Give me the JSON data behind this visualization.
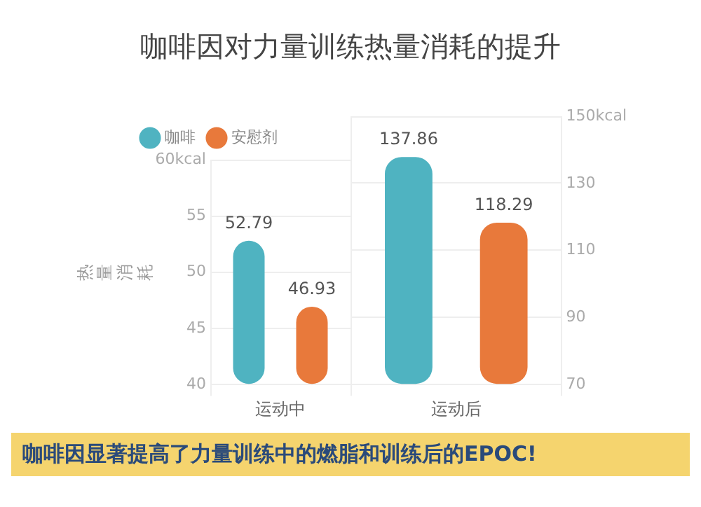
{
  "chart_data": [
    {
      "type": "bar",
      "title": "咖啡因对力量训练热量消耗的提升",
      "ylabel": "热量消耗",
      "categories": [
        "运动中"
      ],
      "series": [
        {
          "name": "咖啡",
          "color": "#4fb3c1",
          "values": [
            52.79
          ]
        },
        {
          "name": "安慰剂",
          "color": "#e8793b",
          "values": [
            46.93
          ]
        }
      ],
      "ylim": [
        40,
        60
      ],
      "yticks": [
        40,
        45,
        50,
        55,
        {
          "value": 60,
          "label": "60kcal"
        }
      ],
      "grid": true,
      "legend": "top",
      "data_labels": true,
      "annotations": [
        "咖啡因显著提高了力量训练中的燃脂和训练后的EPOC!"
      ]
    },
    {
      "type": "bar",
      "categories": [
        "运动后"
      ],
      "series": [
        {
          "color": "#4fb3c1",
          "values": [
            137.86
          ],
          "axis": "y2"
        },
        {
          "color": "#e8793b",
          "values": [
            118.29
          ],
          "axis": "y2"
        }
      ],
      "y2lim": [
        70,
        150
      ],
      "y2ticks": [
        70,
        90,
        110,
        130,
        {
          "value": 150,
          "label": "150kcal"
        }
      ],
      "grid": true,
      "data_labels": true
    }
  ]
}
